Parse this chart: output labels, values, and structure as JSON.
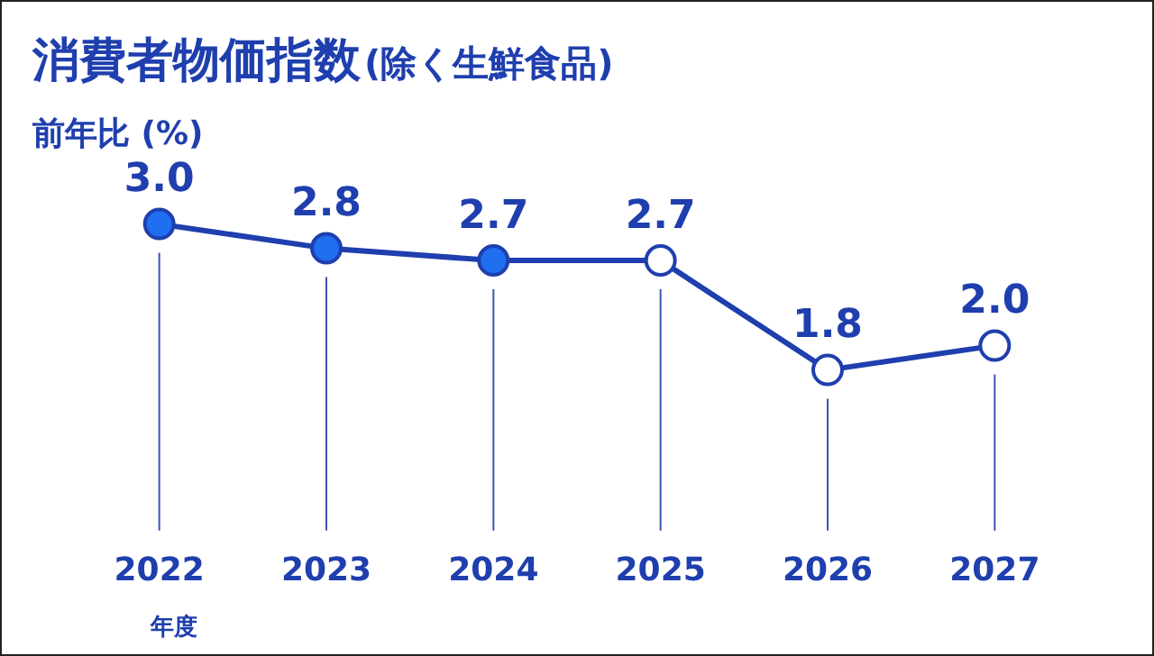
{
  "chart_data": {
    "type": "line",
    "title": "消費者物価指数",
    "subtitle": "(除く生鮮食品)",
    "ylabel": "前年比 (%)",
    "xlabel": "年度",
    "categories": [
      "2022",
      "2023",
      "2024",
      "2025",
      "2026",
      "2027"
    ],
    "series": [
      {
        "color": "#1f3fae",
        "values": [
          3.0,
          2.8,
          2.7,
          2.7,
          1.8,
          2.0
        ],
        "value_labels": [
          "3.0",
          "2.8",
          "2.7",
          "2.7",
          "1.8",
          "2.0"
        ],
        "colors": [
          "#1f6ff0",
          "#1f6ff0",
          "#1f6ff0",
          "#ffffff",
          "#ffffff",
          "#ffffff"
        ]
      }
    ],
    "marker": "circle",
    "line_style": "solid",
    "grid": "x",
    "legend": false
  }
}
